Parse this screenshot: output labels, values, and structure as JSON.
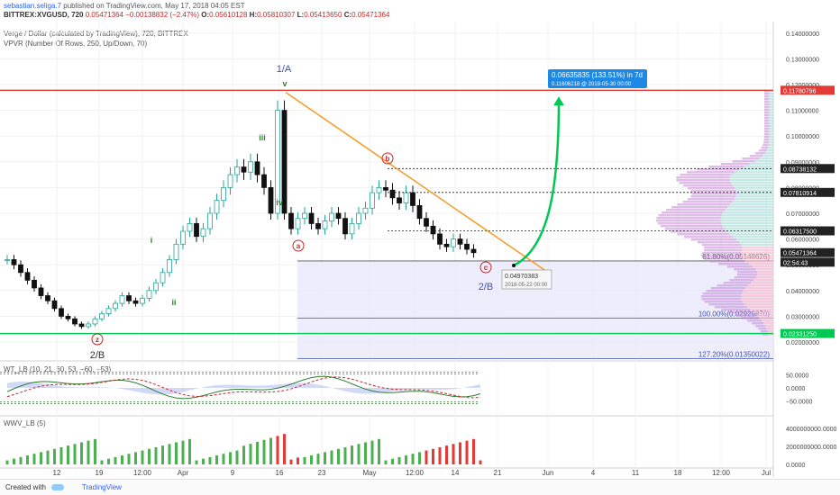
{
  "header": {
    "author": "sebastian.seliga.7",
    "published": "published on TradingView.com, May 17, 2018 04:05 EST",
    "symbol": "BITTREX:XVGUSD, 720",
    "price": "0.05471364",
    "change": "−0.00138832 (−2.47%)",
    "open_label": "O:",
    "open": "0.05610128",
    "high_label": "H:",
    "high": "0.05810307",
    "low_label": "L:",
    "low": "0.05413650",
    "close_label": "C:",
    "close": "0.05471364",
    "line3": "Verge / Dollar (calculated by TradingView), 720, BITTREX",
    "line4": "VPVR (Number Of Rows, 250, Up/Down, 70)",
    "wt_label": "WT_LB (10, 21, 60, 53, −60, −53)",
    "wwv_label": "WWV_LB (5)"
  },
  "footer": {
    "created": "Created with",
    "brand": "TradingView"
  },
  "colors": {
    "up": "#26a69a",
    "down": "#111111",
    "wave": "#2e7d32",
    "trend": "#f59a23",
    "red": "#e53935",
    "green": "#00c853",
    "fib": "#3f51b5"
  },
  "chart_data": [
    {
      "type": "candlestick",
      "ylim": [
        0.015,
        0.145
      ],
      "x_ticks": [
        "12",
        "19",
        "12:00",
        "Apr",
        "9",
        "16",
        "23",
        "May",
        "12:00",
        "14",
        "21",
        "Jun",
        "4",
        "11",
        "18",
        "12:00",
        "Jul"
      ],
      "y_ticks": [
        "0.14000000",
        "0.13000000",
        "0.12000000",
        "0.11000000",
        "0.10000000",
        "0.09000000",
        "0.08000000",
        "0.07000000",
        "0.06000000",
        "0.05000000",
        "0.04000000",
        "0.03000000",
        "0.02000000"
      ],
      "price_labels": [
        {
          "value": 0.11780796,
          "text": "0.11780796",
          "color": "#e53935"
        },
        {
          "value": 0.08738132,
          "text": "0.08738132",
          "color": "#ffffff"
        },
        {
          "value": 0.07810914,
          "text": "0.07810914",
          "color": "#ffffff"
        },
        {
          "value": 0.063175,
          "text": "0.06317500",
          "color": "#ffffff"
        },
        {
          "value": 0.05471364,
          "text": "0.05471364",
          "color": "#ffffff"
        },
        {
          "value": 0.051,
          "text": "02:54:43",
          "color": "#ffffff"
        },
        {
          "value": 0.0233125,
          "text": "0.02331250",
          "color": "#00c853"
        }
      ],
      "close_series": [
        0.052,
        0.05,
        0.047,
        0.044,
        0.041,
        0.038,
        0.036,
        0.033,
        0.03,
        0.029,
        0.027,
        0.026,
        0.027,
        0.029,
        0.031,
        0.033,
        0.035,
        0.038,
        0.036,
        0.035,
        0.037,
        0.04,
        0.043,
        0.047,
        0.052,
        0.058,
        0.063,
        0.066,
        0.061,
        0.064,
        0.07,
        0.075,
        0.08,
        0.085,
        0.088,
        0.086,
        0.09,
        0.085,
        0.08,
        0.07,
        0.11,
        0.07,
        0.064,
        0.068,
        0.07,
        0.066,
        0.064,
        0.067,
        0.07,
        0.068,
        0.062,
        0.066,
        0.07,
        0.072,
        0.078,
        0.08,
        0.079,
        0.076,
        0.074,
        0.078,
        0.073,
        0.068,
        0.065,
        0.062,
        0.058,
        0.057,
        0.06,
        0.058,
        0.056,
        0.0547
      ],
      "wave_labels": [
        {
          "text": "1/A",
          "color": "#3f51b5"
        },
        {
          "text": "v",
          "color": "#2e7d32"
        },
        {
          "text": "iii",
          "color": "#2e7d32"
        },
        {
          "text": "iv",
          "color": "#2e7d32"
        },
        {
          "text": "i",
          "color": "#2e7d32"
        },
        {
          "text": "ii",
          "color": "#2e7d32"
        },
        {
          "text": "z",
          "color": "#c62828"
        },
        {
          "text": "2/B",
          "color": "#333333"
        },
        {
          "text": "a",
          "color": "#c62828"
        },
        {
          "text": "b",
          "color": "#c62828"
        },
        {
          "text": "c",
          "color": "#c62828"
        },
        {
          "text": "2/B",
          "color": "#3f51b5"
        }
      ],
      "fib_levels": [
        {
          "value": 0.05148626,
          "text": "61.80%(0.05148626)"
        },
        {
          "value": 0.0292987,
          "text": "100.00%(0.02929870)"
        },
        {
          "value": 0.01350022,
          "text": "127.20%(0.01350022)"
        }
      ],
      "horizontal_lines": [
        {
          "value": 0.11780796,
          "color": "#e53935"
        },
        {
          "value": 0.0233125,
          "color": "#00c853"
        }
      ],
      "projection": {
        "text1": "0.06635835 (133.51%) in 7d",
        "text2": "0.11606218 @ 2018-05-30 00:00",
        "start_value": 0.04970383,
        "end_value": 0.11606218
      },
      "point_label": {
        "line1": "0.04970383",
        "line2": "2018-05-22 00:00"
      }
    },
    {
      "type": "line",
      "title": "WT_LB (10, 21, 60, 53, −60, −53)",
      "ylim": [
        -70,
        70
      ],
      "y_ticks": [
        "50.0000",
        "0.0000",
        "−50.0000"
      ],
      "levels": [
        60,
        53,
        -53,
        -60
      ]
    },
    {
      "type": "bar",
      "title": "WWV_LB (5)",
      "ylim": [
        0,
        5000000000
      ],
      "y_ticks": [
        "4000000000.0000",
        "2000000000.0000",
        "0.0000"
      ]
    }
  ]
}
